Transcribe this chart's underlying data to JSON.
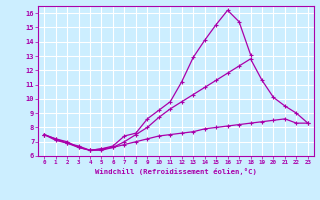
{
  "background_color": "#cceeff",
  "grid_color": "#ffffff",
  "line_color": "#aa00aa",
  "xlabel": "Windchill (Refroidissement éolien,°C)",
  "xlim": [
    -0.5,
    23.5
  ],
  "ylim": [
    6,
    16.5
  ],
  "xtick_vals": [
    0,
    1,
    2,
    3,
    4,
    5,
    6,
    7,
    8,
    9,
    10,
    11,
    12,
    13,
    14,
    15,
    16,
    17,
    18,
    19,
    20,
    21,
    22,
    23
  ],
  "xtick_labels": [
    "0",
    "1",
    "2",
    "3",
    "4",
    "5",
    "6",
    "7",
    "8",
    "9",
    "10",
    "11",
    "12",
    "13",
    "14",
    "15",
    "16",
    "17",
    "18",
    "19",
    "20",
    "21",
    "22",
    "23"
  ],
  "ytick_vals": [
    6,
    7,
    8,
    9,
    10,
    11,
    12,
    13,
    14,
    15,
    16
  ],
  "ytick_labels": [
    "6",
    "7",
    "8",
    "9",
    "10",
    "11",
    "12",
    "13",
    "14",
    "15",
    "16"
  ],
  "series": [
    {
      "x": [
        0,
        1,
        2,
        3,
        4,
        5,
        6,
        7,
        8,
        9,
        10,
        11,
        12,
        13,
        14,
        15,
        16,
        17,
        18
      ],
      "y": [
        7.5,
        7.2,
        7.0,
        6.6,
        6.4,
        6.5,
        6.7,
        7.4,
        7.6,
        8.6,
        9.2,
        9.8,
        11.2,
        12.9,
        14.1,
        15.2,
        16.2,
        15.4,
        13.1
      ]
    },
    {
      "x": [
        0,
        1,
        2,
        3,
        4,
        5,
        6,
        7,
        8,
        9,
        10,
        11,
        12,
        13,
        14,
        15,
        16,
        17,
        18,
        19,
        20,
        21,
        22,
        23
      ],
      "y": [
        7.5,
        7.2,
        6.9,
        6.6,
        6.4,
        6.4,
        6.6,
        7.0,
        7.5,
        8.0,
        8.7,
        9.3,
        9.8,
        10.3,
        10.8,
        11.3,
        11.8,
        12.3,
        12.8,
        11.3,
        10.1,
        9.5,
        9.0,
        8.3
      ]
    },
    {
      "x": [
        0,
        1,
        2,
        3,
        4,
        5,
        6,
        7,
        8,
        9,
        10,
        11,
        12,
        13,
        14,
        15,
        16,
        17,
        18,
        19,
        20,
        21,
        22,
        23
      ],
      "y": [
        7.5,
        7.1,
        6.9,
        6.7,
        6.4,
        6.5,
        6.6,
        6.8,
        7.0,
        7.2,
        7.4,
        7.5,
        7.6,
        7.7,
        7.9,
        8.0,
        8.1,
        8.2,
        8.3,
        8.4,
        8.5,
        8.6,
        8.3,
        8.3
      ]
    }
  ]
}
